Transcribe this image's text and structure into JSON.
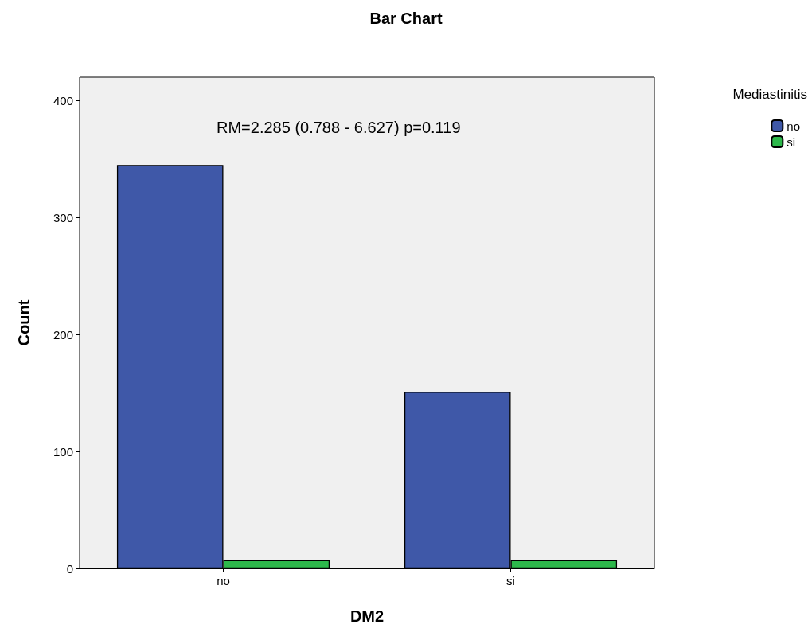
{
  "chart_data": {
    "type": "bar",
    "title": "Bar Chart",
    "xlabel": "DM2",
    "ylabel": "Count",
    "legend_title": "Mediastinitis",
    "categories": [
      "no",
      "si"
    ],
    "series": [
      {
        "name": "no",
        "color": "#3f58a8",
        "values": [
          345,
          151
        ]
      },
      {
        "name": "si",
        "color": "#2db84b",
        "values": [
          7,
          7
        ]
      }
    ],
    "ylim": [
      0,
      420
    ],
    "yticks": [
      0,
      100,
      200,
      300,
      400
    ],
    "grid": false,
    "legend": "top right",
    "annotations": [
      "RM=2.285 (0.788 - 6.627) p=0.119"
    ]
  }
}
